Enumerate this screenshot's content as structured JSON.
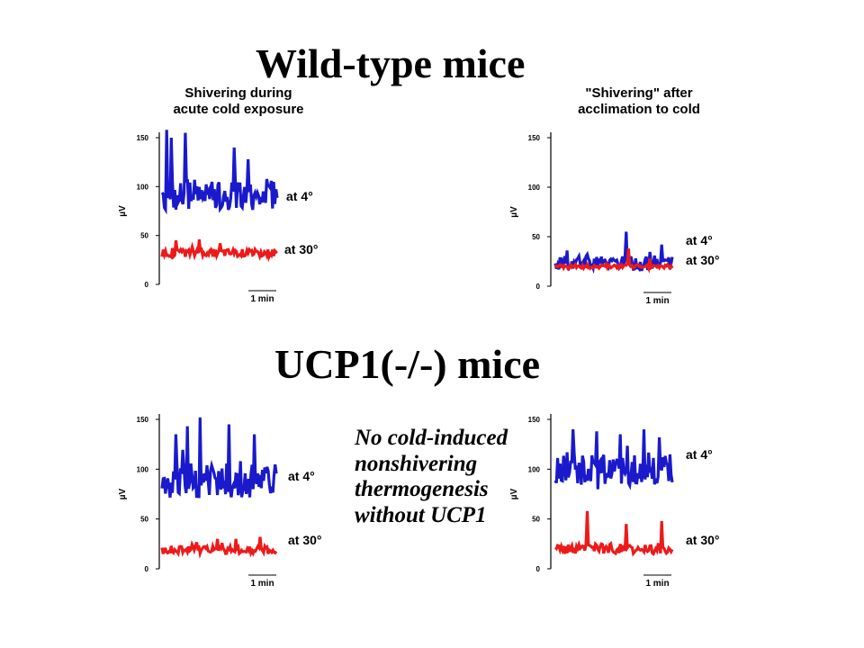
{
  "headings": {
    "wild_type": "Wild-type mice",
    "knockout": "UCP1(-/-) mice"
  },
  "note": {
    "lines": [
      "No cold-induced",
      "nonshivering",
      "thermogenesis",
      "without UCP1"
    ]
  },
  "colors": {
    "at_4": "#1a1acc",
    "at_30": "#ee1a1a",
    "axis": "#000000"
  },
  "chart_data": [
    {
      "type": "line",
      "title": "Shivering during acute cold exposure",
      "title_lines": [
        "Shivering during",
        "acute cold exposure"
      ],
      "ylabel": "µV",
      "yticks": [
        0,
        50,
        100,
        150
      ],
      "ylim": [
        0,
        150
      ],
      "scale_bar": "1 min",
      "series": [
        {
          "name": "at 4°",
          "color": "#1a1acc",
          "mean": 92,
          "variation": 16,
          "peaks": [
            [
              4,
              158
            ],
            [
              8,
              150
            ],
            [
              20,
              155
            ],
            [
              62,
              140
            ],
            [
              74,
              128
            ]
          ]
        },
        {
          "name": "at 30°",
          "color": "#ee1a1a",
          "mean": 32,
          "variation": 4,
          "peaks": [
            [
              12,
              45
            ],
            [
              32,
              46
            ],
            [
              50,
              42
            ]
          ]
        }
      ]
    },
    {
      "type": "line",
      "title": "\"Shivering\" after acclimation to cold",
      "title_lines": [
        "\"Shivering\" after",
        "acclimation to cold"
      ],
      "ylabel": "µV",
      "yticks": [
        0,
        50,
        100,
        150
      ],
      "ylim": [
        0,
        150
      ],
      "scale_bar": "1 min",
      "series": [
        {
          "name": "at 4°",
          "color": "#1a1acc",
          "mean": 24,
          "variation": 7,
          "peaks": [
            [
              10,
              36
            ],
            [
              60,
              55
            ],
            [
              90,
              42
            ]
          ]
        },
        {
          "name": "at 30°",
          "color": "#ee1a1a",
          "mean": 20,
          "variation": 2,
          "peaks": [
            [
              62,
              38
            ],
            [
              80,
              28
            ]
          ]
        }
      ]
    },
    {
      "type": "line",
      "title": "",
      "ylabel": "µV",
      "yticks": [
        0,
        50,
        100,
        150
      ],
      "ylim": [
        0,
        150
      ],
      "scale_bar": "1 min",
      "series": [
        {
          "name": "at 4°",
          "color": "#1a1acc",
          "mean": 88,
          "variation": 18,
          "peaks": [
            [
              12,
              135
            ],
            [
              22,
              143
            ],
            [
              33,
              152
            ],
            [
              58,
              145
            ],
            [
              80,
              135
            ]
          ]
        },
        {
          "name": "at 30°",
          "color": "#ee1a1a",
          "mean": 19,
          "variation": 4,
          "peaks": [
            [
              48,
              30
            ],
            [
              64,
              30
            ],
            [
              85,
              32
            ]
          ]
        }
      ]
    },
    {
      "type": "line",
      "title": "",
      "ylabel": "µV",
      "yticks": [
        0,
        50,
        100,
        150
      ],
      "ylim": [
        0,
        150
      ],
      "scale_bar": "1 min",
      "series": [
        {
          "name": "at 4°",
          "color": "#1a1acc",
          "mean": 100,
          "variation": 17,
          "peaks": [
            [
              15,
              140
            ],
            [
              35,
              138
            ],
            [
              55,
              135
            ],
            [
              75,
              140
            ],
            [
              88,
              132
            ]
          ]
        },
        {
          "name": "at 30°",
          "color": "#ee1a1a",
          "mean": 20,
          "variation": 5,
          "peaks": [
            [
              27,
              58
            ],
            [
              60,
              45
            ],
            [
              90,
              48
            ]
          ]
        }
      ]
    }
  ]
}
